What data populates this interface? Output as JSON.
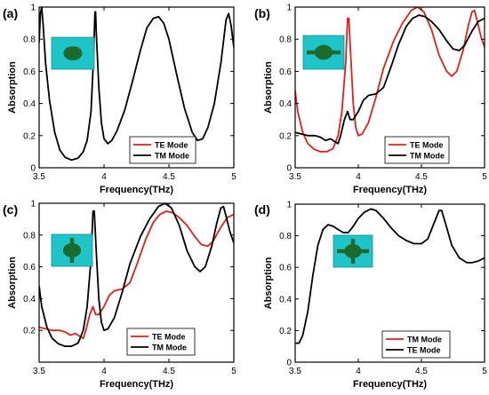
{
  "colors": {
    "red": "#e0201b",
    "black": "#000000",
    "inset_bg": "#1ec4c8",
    "inset_shape": "#1c6a2e"
  },
  "chart_data": [
    {
      "panel_label": "(a)",
      "type": "line",
      "xlabel": "Frequency(THz)",
      "ylabel": "Absorption",
      "xlim": [
        3.5,
        5
      ],
      "ylim": [
        0,
        1
      ],
      "xticks": [
        "3.5",
        "4",
        "4.5",
        "5"
      ],
      "yticks": [
        "0",
        "0.2",
        "0.4",
        "0.6",
        "0.8",
        "1"
      ],
      "inset_icon": "ellipse-patch-icon",
      "legend": {
        "placement": "lower-right",
        "entries": [
          {
            "label": "TE Mode",
            "color": "#e0201b"
          },
          {
            "label": "TM Mode",
            "color": "#000000"
          }
        ]
      },
      "series": [
        {
          "name": "TM Mode",
          "color": "#000000",
          "points": [
            [
              3.5,
              0.78
            ],
            [
              3.51,
              0.96
            ],
            [
              3.52,
              1.0
            ],
            [
              3.53,
              0.9
            ],
            [
              3.55,
              0.65
            ],
            [
              3.58,
              0.42
            ],
            [
              3.62,
              0.22
            ],
            [
              3.66,
              0.11
            ],
            [
              3.7,
              0.065
            ],
            [
              3.75,
              0.048
            ],
            [
              3.8,
              0.06
            ],
            [
              3.84,
              0.1
            ],
            [
              3.87,
              0.17
            ],
            [
              3.9,
              0.35
            ],
            [
              3.92,
              0.7
            ],
            [
              3.93,
              0.97
            ],
            [
              3.935,
              0.97
            ],
            [
              3.94,
              0.85
            ],
            [
              3.96,
              0.5
            ],
            [
              3.98,
              0.28
            ],
            [
              4.0,
              0.18
            ],
            [
              4.03,
              0.15
            ],
            [
              4.06,
              0.17
            ],
            [
              4.1,
              0.23
            ],
            [
              4.16,
              0.36
            ],
            [
              4.22,
              0.54
            ],
            [
              4.28,
              0.73
            ],
            [
              4.33,
              0.87
            ],
            [
              4.38,
              0.93
            ],
            [
              4.42,
              0.94
            ],
            [
              4.46,
              0.9
            ],
            [
              4.5,
              0.8
            ],
            [
              4.56,
              0.58
            ],
            [
              4.62,
              0.37
            ],
            [
              4.68,
              0.22
            ],
            [
              4.72,
              0.17
            ],
            [
              4.76,
              0.18
            ],
            [
              4.8,
              0.25
            ],
            [
              4.85,
              0.4
            ],
            [
              4.9,
              0.65
            ],
            [
              4.94,
              0.92
            ],
            [
              4.96,
              0.96
            ],
            [
              4.98,
              0.88
            ],
            [
              5.0,
              0.75
            ]
          ]
        }
      ]
    },
    {
      "panel_label": "(b)",
      "type": "line",
      "xlabel": "Frequency(THz)",
      "ylabel": "Absorption",
      "xlim": [
        3.5,
        5
      ],
      "ylim": [
        0,
        1
      ],
      "xticks": [
        "3.5",
        "4",
        "4.5",
        "5"
      ],
      "yticks": [
        "0",
        "0.2",
        "0.4",
        "0.6",
        "0.8",
        "1"
      ],
      "inset_icon": "ellipse-with-bar-patch-icon",
      "legend": {
        "placement": "lower-right",
        "entries": [
          {
            "label": "TE Mode",
            "color": "#e0201b"
          },
          {
            "label": "TM Mode",
            "color": "#000000"
          }
        ]
      },
      "series": [
        {
          "name": "TE Mode",
          "color": "#e0201b",
          "points": [
            [
              3.5,
              0.48
            ],
            [
              3.52,
              0.35
            ],
            [
              3.56,
              0.22
            ],
            [
              3.6,
              0.15
            ],
            [
              3.65,
              0.115
            ],
            [
              3.7,
              0.1
            ],
            [
              3.75,
              0.1
            ],
            [
              3.8,
              0.12
            ],
            [
              3.84,
              0.2
            ],
            [
              3.87,
              0.35
            ],
            [
              3.9,
              0.65
            ],
            [
              3.915,
              0.93
            ],
            [
              3.925,
              0.93
            ],
            [
              3.94,
              0.7
            ],
            [
              3.96,
              0.4
            ],
            [
              3.98,
              0.25
            ],
            [
              4.0,
              0.2
            ],
            [
              4.03,
              0.21
            ],
            [
              4.08,
              0.28
            ],
            [
              4.14,
              0.44
            ],
            [
              4.2,
              0.62
            ],
            [
              4.28,
              0.79
            ],
            [
              4.35,
              0.9
            ],
            [
              4.42,
              0.98
            ],
            [
              4.47,
              1.0
            ],
            [
              4.52,
              0.97
            ],
            [
              4.58,
              0.86
            ],
            [
              4.64,
              0.7
            ],
            [
              4.7,
              0.6
            ],
            [
              4.74,
              0.57
            ],
            [
              4.78,
              0.6
            ],
            [
              4.83,
              0.73
            ],
            [
              4.87,
              0.88
            ],
            [
              4.9,
              0.97
            ],
            [
              4.92,
              0.98
            ],
            [
              4.94,
              0.92
            ],
            [
              4.97,
              0.82
            ],
            [
              5.0,
              0.75
            ]
          ]
        },
        {
          "name": "TM Mode",
          "color": "#000000",
          "points": [
            [
              3.5,
              0.22
            ],
            [
              3.55,
              0.21
            ],
            [
              3.6,
              0.2
            ],
            [
              3.66,
              0.2
            ],
            [
              3.7,
              0.19
            ],
            [
              3.74,
              0.17
            ],
            [
              3.78,
              0.18
            ],
            [
              3.82,
              0.16
            ],
            [
              3.84,
              0.15
            ],
            [
              3.86,
              0.2
            ],
            [
              3.89,
              0.3
            ],
            [
              3.915,
              0.35
            ],
            [
              3.935,
              0.3
            ],
            [
              3.96,
              0.3
            ],
            [
              4.0,
              0.35
            ],
            [
              4.04,
              0.42
            ],
            [
              4.08,
              0.45
            ],
            [
              4.14,
              0.46
            ],
            [
              4.2,
              0.5
            ],
            [
              4.26,
              0.63
            ],
            [
              4.32,
              0.77
            ],
            [
              4.38,
              0.88
            ],
            [
              4.43,
              0.93
            ],
            [
              4.48,
              0.95
            ],
            [
              4.53,
              0.94
            ],
            [
              4.58,
              0.91
            ],
            [
              4.64,
              0.86
            ],
            [
              4.7,
              0.79
            ],
            [
              4.75,
              0.74
            ],
            [
              4.8,
              0.73
            ],
            [
              4.84,
              0.76
            ],
            [
              4.9,
              0.85
            ],
            [
              4.95,
              0.91
            ],
            [
              5.0,
              0.93
            ]
          ]
        }
      ]
    },
    {
      "panel_label": "(c)",
      "type": "line",
      "xlabel": "Frequency(THz)",
      "ylabel": "Absorption",
      "xlim": [
        3.5,
        5
      ],
      "ylim": [
        0,
        1
      ],
      "xticks": [
        "3.5",
        "4",
        "4.5",
        "5"
      ],
      "yticks": [
        "0.2",
        "0.4",
        "0.6",
        "0.8",
        "1"
      ],
      "inset_icon": "ellipse-with-vertical-bar-patch-icon",
      "legend": {
        "placement": "lower-right",
        "entries": [
          {
            "label": "TE Mode",
            "color": "#e0201b"
          },
          {
            "label": "TM Mode",
            "color": "#000000"
          }
        ]
      },
      "series": [
        {
          "name": "TE Mode",
          "color": "#e0201b",
          "points": [
            [
              3.5,
              0.22
            ],
            [
              3.55,
              0.21
            ],
            [
              3.6,
              0.2
            ],
            [
              3.66,
              0.2
            ],
            [
              3.7,
              0.19
            ],
            [
              3.74,
              0.17
            ],
            [
              3.78,
              0.18
            ],
            [
              3.82,
              0.16
            ],
            [
              3.84,
              0.15
            ],
            [
              3.86,
              0.2
            ],
            [
              3.89,
              0.3
            ],
            [
              3.915,
              0.35
            ],
            [
              3.935,
              0.3
            ],
            [
              3.96,
              0.3
            ],
            [
              4.0,
              0.35
            ],
            [
              4.04,
              0.42
            ],
            [
              4.08,
              0.45
            ],
            [
              4.14,
              0.46
            ],
            [
              4.2,
              0.5
            ],
            [
              4.26,
              0.63
            ],
            [
              4.32,
              0.77
            ],
            [
              4.38,
              0.88
            ],
            [
              4.43,
              0.93
            ],
            [
              4.48,
              0.95
            ],
            [
              4.53,
              0.94
            ],
            [
              4.58,
              0.91
            ],
            [
              4.64,
              0.86
            ],
            [
              4.7,
              0.79
            ],
            [
              4.75,
              0.74
            ],
            [
              4.8,
              0.73
            ],
            [
              4.84,
              0.76
            ],
            [
              4.9,
              0.85
            ],
            [
              4.95,
              0.91
            ],
            [
              5.0,
              0.93
            ]
          ]
        },
        {
          "name": "TM Mode",
          "color": "#000000",
          "points": [
            [
              3.5,
              0.48
            ],
            [
              3.52,
              0.35
            ],
            [
              3.56,
              0.22
            ],
            [
              3.6,
              0.15
            ],
            [
              3.65,
              0.115
            ],
            [
              3.7,
              0.1
            ],
            [
              3.75,
              0.1
            ],
            [
              3.8,
              0.12
            ],
            [
              3.84,
              0.2
            ],
            [
              3.87,
              0.35
            ],
            [
              3.9,
              0.65
            ],
            [
              3.915,
              0.95
            ],
            [
              3.925,
              0.95
            ],
            [
              3.94,
              0.7
            ],
            [
              3.96,
              0.4
            ],
            [
              3.98,
              0.25
            ],
            [
              4.0,
              0.2
            ],
            [
              4.03,
              0.21
            ],
            [
              4.08,
              0.28
            ],
            [
              4.14,
              0.44
            ],
            [
              4.2,
              0.62
            ],
            [
              4.28,
              0.79
            ],
            [
              4.35,
              0.9
            ],
            [
              4.42,
              0.98
            ],
            [
              4.47,
              1.0
            ],
            [
              4.52,
              0.97
            ],
            [
              4.58,
              0.86
            ],
            [
              4.64,
              0.7
            ],
            [
              4.7,
              0.6
            ],
            [
              4.74,
              0.57
            ],
            [
              4.78,
              0.6
            ],
            [
              4.83,
              0.73
            ],
            [
              4.87,
              0.88
            ],
            [
              4.9,
              0.97
            ],
            [
              4.92,
              0.98
            ],
            [
              4.94,
              0.92
            ],
            [
              4.97,
              0.82
            ],
            [
              5.0,
              0.75
            ]
          ]
        }
      ]
    },
    {
      "panel_label": "(d)",
      "type": "line",
      "xlabel": "Frequency(THz)",
      "ylabel": "Absorption",
      "xlim": [
        3.5,
        5
      ],
      "ylim": [
        0,
        1
      ],
      "xticks": [
        "3.5",
        "4",
        "4.5",
        "5"
      ],
      "yticks": [
        "0",
        "0.2",
        "0.4",
        "0.6",
        "0.8",
        "1"
      ],
      "inset_icon": "ellipse-with-cross-patch-icon",
      "legend": {
        "placement": "lower-right",
        "entries": [
          {
            "label": "TM Mode",
            "color": "#e0201b"
          },
          {
            "label": "TE Mode",
            "color": "#000000"
          }
        ]
      },
      "series": [
        {
          "name": "TE Mode",
          "color": "#000000",
          "points": [
            [
              3.5,
              0.12
            ],
            [
              3.53,
              0.12
            ],
            [
              3.56,
              0.17
            ],
            [
              3.6,
              0.32
            ],
            [
              3.64,
              0.55
            ],
            [
              3.68,
              0.74
            ],
            [
              3.72,
              0.84
            ],
            [
              3.76,
              0.87
            ],
            [
              3.8,
              0.86
            ],
            [
              3.84,
              0.84
            ],
            [
              3.88,
              0.82
            ],
            [
              3.92,
              0.82
            ],
            [
              3.96,
              0.86
            ],
            [
              4.0,
              0.91
            ],
            [
              4.05,
              0.95
            ],
            [
              4.1,
              0.97
            ],
            [
              4.14,
              0.96
            ],
            [
              4.2,
              0.91
            ],
            [
              4.26,
              0.85
            ],
            [
              4.32,
              0.8
            ],
            [
              4.38,
              0.77
            ],
            [
              4.44,
              0.75
            ],
            [
              4.5,
              0.75
            ],
            [
              4.55,
              0.78
            ],
            [
              4.6,
              0.88
            ],
            [
              4.64,
              0.96
            ],
            [
              4.66,
              0.96
            ],
            [
              4.69,
              0.88
            ],
            [
              4.74,
              0.74
            ],
            [
              4.8,
              0.66
            ],
            [
              4.86,
              0.63
            ],
            [
              4.9,
              0.63
            ],
            [
              4.95,
              0.64
            ],
            [
              5.0,
              0.66
            ]
          ]
        }
      ]
    }
  ]
}
